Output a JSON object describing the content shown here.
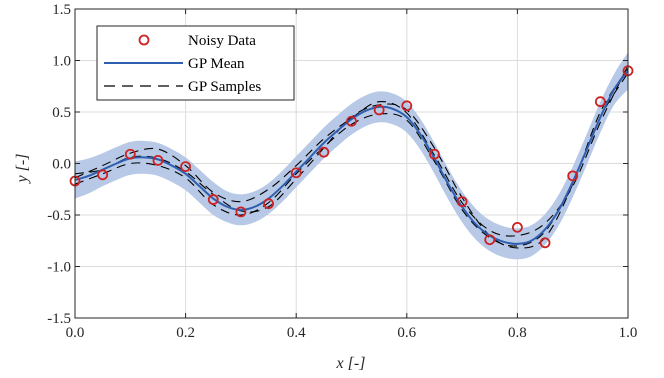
{
  "chart_data": {
    "type": "line",
    "title": "",
    "xlabel": "x [-]",
    "ylabel": "y [-]",
    "xlim": [
      0.0,
      1.0
    ],
    "ylim": [
      -1.5,
      1.5
    ],
    "grid": true,
    "legend_position": "top-left",
    "x_ticks": [
      0.0,
      0.2,
      0.4,
      0.6,
      0.8,
      1.0
    ],
    "x_tick_labels": [
      "0.0",
      "0.2",
      "0.4",
      "0.6",
      "0.8",
      "1.0"
    ],
    "y_ticks": [
      -1.5,
      -1.0,
      -0.5,
      0.0,
      0.5,
      1.0,
      1.5
    ],
    "y_tick_labels": [
      "-1.5",
      "-1.0",
      "-0.5",
      "0.0",
      "0.5",
      "1.0",
      "1.5"
    ],
    "legend": {
      "noisy": "Noisy Data",
      "mean": "GP Mean",
      "samples": "GP Samples"
    },
    "colors": {
      "noisy": "#cc2222",
      "mean": "#2f5fb0",
      "band": "#b7c9e6",
      "samples": "#000000",
      "grid": "#dcdcdc",
      "axis": "#262626"
    },
    "noisy_data": {
      "x": [
        0.0,
        0.05,
        0.1,
        0.15,
        0.2,
        0.25,
        0.3,
        0.35,
        0.4,
        0.45,
        0.5,
        0.55,
        0.6,
        0.65,
        0.7,
        0.75,
        0.8,
        0.85,
        0.9,
        0.95,
        1.0
      ],
      "y": [
        -0.17,
        -0.11,
        0.09,
        0.03,
        -0.03,
        -0.35,
        -0.47,
        -0.39,
        -0.09,
        0.11,
        0.41,
        0.52,
        0.56,
        0.09,
        -0.37,
        -0.74,
        -0.62,
        -0.77,
        -0.12,
        0.6,
        0.9
      ]
    },
    "gp_mean": {
      "x": [
        0.0,
        0.025,
        0.05,
        0.075,
        0.1,
        0.125,
        0.15,
        0.175,
        0.2,
        0.225,
        0.25,
        0.275,
        0.3,
        0.325,
        0.35,
        0.375,
        0.4,
        0.425,
        0.45,
        0.475,
        0.5,
        0.525,
        0.55,
        0.575,
        0.6,
        0.625,
        0.65,
        0.675,
        0.7,
        0.725,
        0.75,
        0.775,
        0.8,
        0.825,
        0.85,
        0.875,
        0.9,
        0.925,
        0.95,
        0.975,
        1.0
      ],
      "y": [
        -0.16,
        -0.12,
        -0.06,
        0.0,
        0.05,
        0.06,
        0.04,
        -0.02,
        -0.1,
        -0.22,
        -0.34,
        -0.42,
        -0.45,
        -0.42,
        -0.34,
        -0.22,
        -0.08,
        0.06,
        0.2,
        0.32,
        0.43,
        0.51,
        0.55,
        0.53,
        0.45,
        0.28,
        0.05,
        -0.2,
        -0.42,
        -0.59,
        -0.7,
        -0.76,
        -0.78,
        -0.75,
        -0.64,
        -0.45,
        -0.18,
        0.13,
        0.45,
        0.72,
        0.9
      ]
    },
    "confidence_band": {
      "x": [
        0.0,
        0.025,
        0.05,
        0.075,
        0.1,
        0.125,
        0.15,
        0.175,
        0.2,
        0.225,
        0.25,
        0.275,
        0.3,
        0.325,
        0.35,
        0.375,
        0.4,
        0.425,
        0.45,
        0.475,
        0.5,
        0.525,
        0.55,
        0.575,
        0.6,
        0.625,
        0.65,
        0.675,
        0.7,
        0.725,
        0.75,
        0.775,
        0.8,
        0.825,
        0.85,
        0.875,
        0.9,
        0.925,
        0.95,
        0.975,
        1.0
      ],
      "upper": [
        0.02,
        0.05,
        0.1,
        0.16,
        0.21,
        0.22,
        0.2,
        0.14,
        0.06,
        -0.06,
        -0.18,
        -0.27,
        -0.3,
        -0.27,
        -0.19,
        -0.07,
        0.07,
        0.21,
        0.35,
        0.47,
        0.58,
        0.66,
        0.7,
        0.68,
        0.6,
        0.43,
        0.2,
        -0.05,
        -0.27,
        -0.44,
        -0.55,
        -0.61,
        -0.63,
        -0.6,
        -0.49,
        -0.3,
        -0.03,
        0.28,
        0.6,
        0.87,
        1.08
      ],
      "lower": [
        -0.34,
        -0.29,
        -0.22,
        -0.16,
        -0.11,
        -0.1,
        -0.12,
        -0.18,
        -0.26,
        -0.38,
        -0.5,
        -0.57,
        -0.6,
        -0.57,
        -0.49,
        -0.37,
        -0.23,
        -0.09,
        0.05,
        0.17,
        0.28,
        0.36,
        0.4,
        0.38,
        0.3,
        0.13,
        -0.1,
        -0.35,
        -0.57,
        -0.74,
        -0.85,
        -0.91,
        -0.93,
        -0.9,
        -0.79,
        -0.6,
        -0.33,
        -0.02,
        0.3,
        0.57,
        0.72
      ]
    },
    "gp_samples": [
      {
        "x": [
          0.0,
          0.05,
          0.1,
          0.15,
          0.2,
          0.25,
          0.3,
          0.35,
          0.4,
          0.45,
          0.5,
          0.55,
          0.6,
          0.65,
          0.7,
          0.75,
          0.8,
          0.85,
          0.9,
          0.95,
          1.0
        ],
        "y": [
          -0.14,
          -0.02,
          0.1,
          0.14,
          -0.02,
          -0.28,
          -0.37,
          -0.25,
          -0.02,
          0.24,
          0.44,
          0.6,
          0.49,
          0.08,
          -0.38,
          -0.65,
          -0.7,
          -0.58,
          -0.22,
          0.4,
          0.95
        ]
      },
      {
        "x": [
          0.0,
          0.05,
          0.1,
          0.15,
          0.2,
          0.25,
          0.3,
          0.35,
          0.4,
          0.45,
          0.5,
          0.55,
          0.6,
          0.65,
          0.7,
          0.75,
          0.8,
          0.85,
          0.9,
          0.95,
          1.0
        ],
        "y": [
          -0.2,
          -0.1,
          0.0,
          -0.02,
          -0.14,
          -0.4,
          -0.5,
          -0.38,
          -0.1,
          0.16,
          0.38,
          0.48,
          0.42,
          0.02,
          -0.45,
          -0.72,
          -0.8,
          -0.66,
          -0.18,
          0.45,
          0.88
        ]
      },
      {
        "x": [
          0.0,
          0.05,
          0.1,
          0.15,
          0.2,
          0.25,
          0.3,
          0.35,
          0.4,
          0.45,
          0.5,
          0.55,
          0.6,
          0.65,
          0.7,
          0.75,
          0.8,
          0.85,
          0.9,
          0.95,
          1.0
        ],
        "y": [
          -0.1,
          -0.06,
          0.06,
          0.05,
          -0.08,
          -0.3,
          -0.46,
          -0.42,
          -0.15,
          0.15,
          0.45,
          0.57,
          0.52,
          0.15,
          -0.33,
          -0.7,
          -0.82,
          -0.72,
          -0.2,
          0.5,
          0.92
        ]
      }
    ]
  }
}
